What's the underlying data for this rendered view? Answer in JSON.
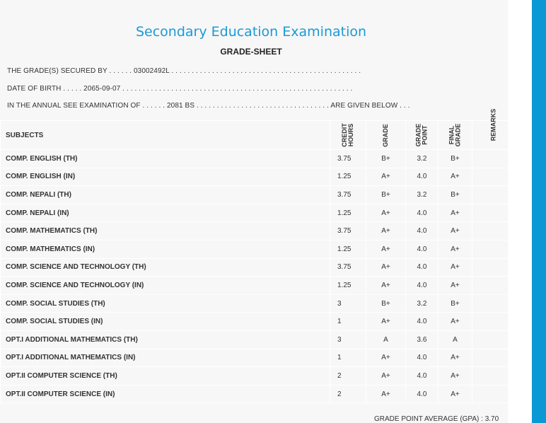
{
  "header": {
    "title": "Secondary Education Examination",
    "subtitle": "GRADE-SHEET"
  },
  "info": {
    "secured_by": "THE GRADE(S) SECURED BY . . . . . . 03002492L . . . . . . . . . . . . . . . . . . . . . . . . . . . . . . . . . . . . . . . . . . . . . . .",
    "dob": "DATE OF BIRTH . . . . . 2065-09-07 . . . . . . . . . . . . . . . . . . . . . . . . . . . . . . . . . . . . . . . . . . . . . . . . . . . . . . . . .",
    "exam": "IN THE ANNUAL SEE EXAMINATION OF . . . . . . 2081 BS . . . . . . . . . . . . . . . . . . . . . . . . . . . . . . . . . ARE GIVEN BELOW . . ."
  },
  "table": {
    "headers": [
      "SUBJECTS",
      "CREDIT\nHOURS",
      "GRADE",
      "GRADE\nPOINT",
      "FINAL\nGRADE",
      "REMARKS"
    ],
    "rows": [
      [
        "COMP. ENGLISH (TH)",
        "3.75",
        "B+",
        "3.2",
        "B+"
      ],
      [
        "COMP. ENGLISH (IN)",
        "1.25",
        "A+",
        "4.0",
        "A+"
      ],
      [
        "COMP. NEPALI (TH)",
        "3.75",
        "B+",
        "3.2",
        "B+"
      ],
      [
        "COMP. NEPALI (IN)",
        "1.25",
        "A+",
        "4.0",
        "A+"
      ],
      [
        "COMP. MATHEMATICS (TH)",
        "3.75",
        "A+",
        "4.0",
        "A+"
      ],
      [
        "COMP. MATHEMATICS (IN)",
        "1.25",
        "A+",
        "4.0",
        "A+"
      ],
      [
        "COMP. SCIENCE AND TECHNOLOGY (TH)",
        "3.75",
        "A+",
        "4.0",
        "A+"
      ],
      [
        "COMP. SCIENCE AND TECHNOLOGY (IN)",
        "1.25",
        "A+",
        "4.0",
        "A+"
      ],
      [
        "COMP. SOCIAL STUDIES (TH)",
        "3",
        "B+",
        "3.2",
        "B+"
      ],
      [
        "COMP. SOCIAL STUDIES (IN)",
        "1",
        "A+",
        "4.0",
        "A+"
      ],
      [
        "OPT.I ADDITIONAL MATHEMATICS (TH)",
        "3",
        "A",
        "3.6",
        "A"
      ],
      [
        "OPT.I ADDITIONAL MATHEMATICS (IN)",
        "1",
        "A+",
        "4.0",
        "A+"
      ],
      [
        "OPT.II COMPUTER SCIENCE (TH)",
        "2",
        "A+",
        "4.0",
        "A+"
      ],
      [
        "OPT.II COMPUTER SCIENCE (IN)",
        "2",
        "A+",
        "4.0",
        "A+"
      ]
    ]
  },
  "gpa": "GRADE POINT AVERAGE (GPA) : 3.70"
}
